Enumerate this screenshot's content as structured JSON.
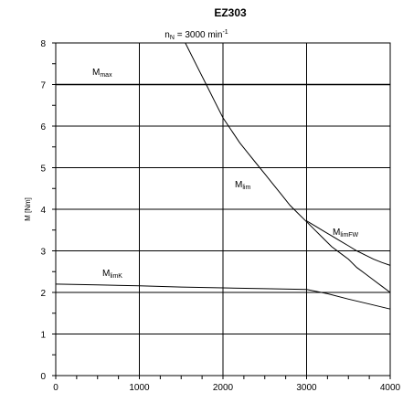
{
  "chart_data": {
    "type": "line",
    "title": "EZ303",
    "subtitle": {
      "main": "n",
      "sub": "N",
      "value": " = 3000 min",
      "sup": "-1"
    },
    "xlabel": "",
    "ylabel": "M [Nm]",
    "xlim": [
      0,
      4000
    ],
    "ylim": [
      0,
      8
    ],
    "xticks": [
      "0",
      "1000",
      "2000",
      "3000",
      "4000"
    ],
    "yticks": [
      "0",
      "1",
      "2",
      "3",
      "4",
      "5",
      "6",
      "7",
      "8"
    ],
    "grid": true,
    "series": [
      {
        "name": "M_max",
        "label_main": "M",
        "label_sub": "max",
        "x": [
          0,
          4000
        ],
        "y": [
          7.0,
          7.0
        ]
      },
      {
        "name": "M_lim",
        "label_main": "M",
        "label_sub": "lim",
        "x": [
          1550,
          1700,
          1800,
          1900,
          2000,
          2100,
          2200,
          2300,
          2400,
          2500,
          2600,
          2700,
          2800,
          2900,
          3000,
          3100,
          3200,
          3300,
          3400,
          3500,
          3600,
          3700,
          3800,
          3900,
          4000
        ],
        "y": [
          8.0,
          7.4,
          7.0,
          6.6,
          6.2,
          5.9,
          5.6,
          5.35,
          5.1,
          4.85,
          4.6,
          4.35,
          4.1,
          3.9,
          3.7,
          3.5,
          3.3,
          3.1,
          2.95,
          2.8,
          2.6,
          2.45,
          2.3,
          2.15,
          2.0
        ]
      },
      {
        "name": "M_limFW",
        "label_main": "M",
        "label_sub": "limFW",
        "x": [
          3000,
          3100,
          3200,
          3300,
          3400,
          3500,
          3600,
          3700,
          3800,
          3900,
          4000
        ],
        "y": [
          3.72,
          3.6,
          3.48,
          3.36,
          3.24,
          3.12,
          3.0,
          2.9,
          2.8,
          2.72,
          2.65
        ]
      },
      {
        "name": "M_limK",
        "label_main": "M",
        "label_sub": "limK",
        "x": [
          0,
          500,
          1000,
          1500,
          2000,
          2500,
          3000,
          3250,
          3500,
          3750,
          4000
        ],
        "y": [
          2.2,
          2.18,
          2.16,
          2.13,
          2.11,
          2.09,
          2.07,
          1.97,
          1.84,
          1.72,
          1.6
        ]
      }
    ]
  }
}
